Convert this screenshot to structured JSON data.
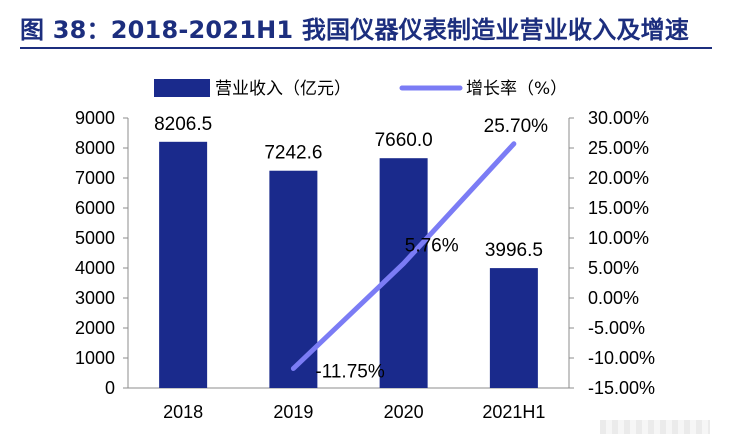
{
  "figure": {
    "title": "图 38：2018-2021H1 我国仪器仪表制造业营业收入及增速"
  },
  "chart_data": {
    "type": "bar",
    "categories": [
      "2018",
      "2019",
      "2020",
      "2021H1"
    ],
    "series": [
      {
        "name": "营业收入（亿元）",
        "type": "bar",
        "axis": "left",
        "color": "#1a2a8c",
        "values": [
          8206.5,
          7242.6,
          7660.0,
          3996.5
        ],
        "labels": [
          "8206.5",
          "7242.6",
          "7660.0",
          "3996.5"
        ]
      },
      {
        "name": "增长率（%）",
        "type": "line",
        "axis": "right",
        "color": "#7b7cf5",
        "values": [
          null,
          -11.75,
          5.76,
          25.7
        ],
        "labels": [
          "",
          "-11.75%",
          "5.76%",
          "25.70%"
        ]
      }
    ],
    "y_left": {
      "min": 0,
      "max": 9000,
      "ticks": [
        "0",
        "1000",
        "2000",
        "3000",
        "4000",
        "5000",
        "6000",
        "7000",
        "8000",
        "9000"
      ]
    },
    "y_right": {
      "min": -15,
      "max": 30,
      "ticks": [
        "-15.00%",
        "-10.00%",
        "-5.00%",
        "0.00%",
        "5.00%",
        "10.00%",
        "15.00%",
        "20.00%",
        "25.00%",
        "30.00%"
      ]
    },
    "legend": "top-center",
    "grid": false
  }
}
